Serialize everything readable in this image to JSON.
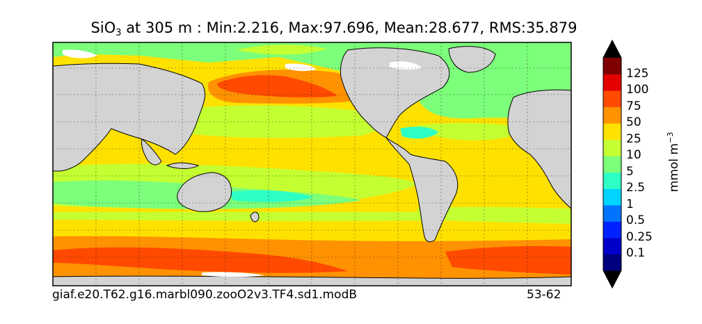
{
  "title": {
    "species": "SiO",
    "subscript": "3",
    "text": " at 305 m : Min:2.216, Max:97.696, Mean:28.677, RMS:35.879"
  },
  "colorbar": {
    "unit": "mmol m",
    "unit_exponent": "−3",
    "levels": [
      "0.1",
      "0.25",
      "0.5",
      "1",
      "2.5",
      "5",
      "10",
      "25",
      "50",
      "75",
      "100",
      "125"
    ],
    "colors": [
      "#00007f",
      "#0000c8",
      "#0022ff",
      "#0074ff",
      "#00d4ff",
      "#2effc4",
      "#7cff7a",
      "#c4ff32",
      "#ffe100",
      "#ff9200",
      "#ff4a00",
      "#e50000",
      "#7f0000"
    ]
  },
  "footer": {
    "case_name": "giaf.e20.T62.g16.marbl090.zooO2v3.TF4.sd1.modB",
    "years": "53-62"
  },
  "chart_data": {
    "type": "heatmap",
    "title": "SiO3 at 305 m : Min:2.216, Max:97.696, Mean:28.677, RMS:35.879",
    "variable": "SiO3",
    "depth": "305 m",
    "stats": {
      "min": 2.216,
      "max": 97.696,
      "mean": 28.677,
      "rms": 35.879
    },
    "colorbar_unit": "mmol m^-3",
    "colorbar_levels": [
      0.1,
      0.25,
      0.5,
      1,
      2.5,
      5,
      10,
      25,
      50,
      75,
      100,
      125
    ],
    "land_color": "#d3d3d3",
    "grid": true
  }
}
